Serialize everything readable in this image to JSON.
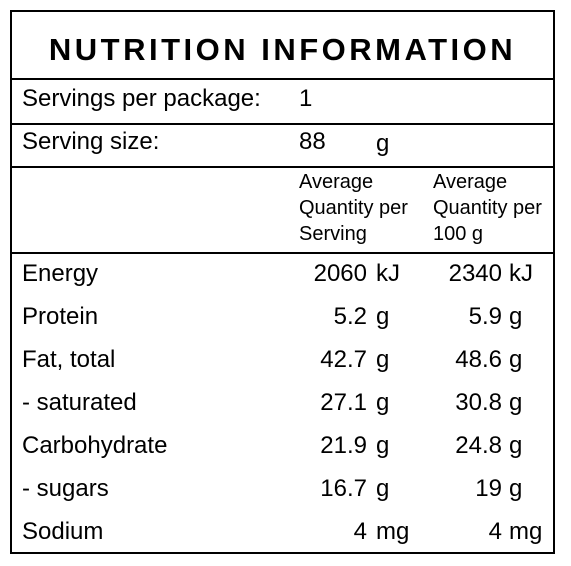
{
  "title": "NUTRITION INFORMATION",
  "servings_per_package": {
    "label": "Servings per package:",
    "value": "1"
  },
  "serving_size": {
    "label": "Serving size:",
    "value": "88",
    "unit": "g"
  },
  "columns": {
    "per_serving": [
      "Average",
      "Quantity per",
      "Serving"
    ],
    "per_100g": [
      "Average",
      "Quantity per",
      "100 g"
    ]
  },
  "rows": [
    {
      "label": "Energy",
      "serving": "2060",
      "serving_unit": "kJ",
      "per100": "2340",
      "per100_unit": "kJ"
    },
    {
      "label": "Protein",
      "serving": "5.2",
      "serving_unit": "g",
      "per100": "5.9",
      "per100_unit": "g"
    },
    {
      "label": "Fat, total",
      "serving": "42.7",
      "serving_unit": "g",
      "per100": "48.6",
      "per100_unit": "g"
    },
    {
      "label": "- saturated",
      "serving": "27.1",
      "serving_unit": "g",
      "per100": "30.8",
      "per100_unit": "g"
    },
    {
      "label": "Carbohydrate",
      "serving": "21.9",
      "serving_unit": "g",
      "per100": "24.8",
      "per100_unit": "g"
    },
    {
      "label": "- sugars",
      "serving": "16.7",
      "serving_unit": "g",
      "per100": "19",
      "per100_unit": "g"
    },
    {
      "label": "Sodium",
      "serving": "4",
      "serving_unit": "mg",
      "per100": "4",
      "per100_unit": "mg"
    }
  ]
}
